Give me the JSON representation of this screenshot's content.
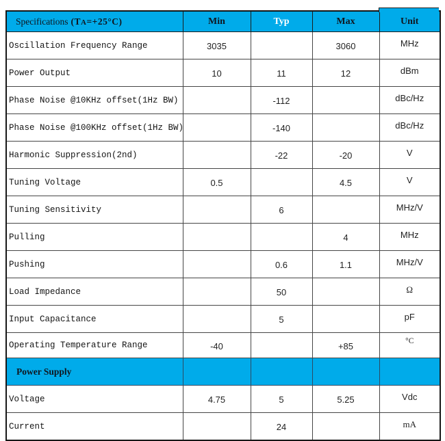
{
  "colors": {
    "accent_cyan": "#00ABEA",
    "typ_header_text": "#FFFFFF"
  },
  "header": {
    "spec_label": "Specifications",
    "cond_open": "(T",
    "cond_sub": "A",
    "cond_rest": "=+25°C)",
    "columns": {
      "min": "Min",
      "typ": "Typ",
      "max": "Max",
      "unit": "Unit"
    }
  },
  "rows": [
    {
      "label": "Oscillation Frequency Range",
      "min": "3035",
      "typ": "",
      "max": "3060",
      "unit": "MHz",
      "section": false
    },
    {
      "label": "Power Output",
      "min": "10",
      "typ": "11",
      "max": "12",
      "unit": "dBm",
      "section": false
    },
    {
      "label": "Phase Noise @10KHz offset(1Hz BW)",
      "min": "",
      "typ": "-112",
      "max": "",
      "unit": "dBc/Hz",
      "section": false
    },
    {
      "label": "Phase Noise @100KHz offset(1Hz BW)",
      "min": "",
      "typ": "-140",
      "max": "",
      "unit": "dBc/Hz",
      "section": false
    },
    {
      "label": "Harmonic Suppression(2nd)",
      "min": "",
      "typ": "-22",
      "max": "-20",
      "unit": "V",
      "section": false
    },
    {
      "label": "Tuning Voltage",
      "min": "0.5",
      "typ": "",
      "max": "4.5",
      "unit": "V",
      "section": false
    },
    {
      "label": "Tuning Sensitivity",
      "min": "",
      "typ": "6",
      "max": "",
      "unit": "MHz/V",
      "section": false
    },
    {
      "label": "Pulling",
      "min": "",
      "typ": "",
      "max": "4",
      "unit": "MHz",
      "section": false
    },
    {
      "label": "Pushing",
      "min": "",
      "typ": "0.6",
      "max": "1.1",
      "unit": "MHz/V",
      "section": false
    },
    {
      "label": "Load Impedance",
      "min": "",
      "typ": "50",
      "max": "",
      "unit": "Ω",
      "section": false
    },
    {
      "label": "Input Capacitance",
      "min": "",
      "typ": "5",
      "max": "",
      "unit": "pF",
      "section": false
    },
    {
      "label": "Operating Temperature Range",
      "min": "-40",
      "typ": "",
      "max": "+85",
      "unit": "°C",
      "section": false
    },
    {
      "label": "Power Supply",
      "min": "",
      "typ": "",
      "max": "",
      "unit": "",
      "section": true
    },
    {
      "label": "Voltage",
      "min": "4.75",
      "typ": "5",
      "max": "5.25",
      "unit": "Vdc",
      "section": false
    },
    {
      "label": "Current",
      "min": "",
      "typ": "24",
      "max": "",
      "unit": "mA",
      "section": false
    }
  ]
}
